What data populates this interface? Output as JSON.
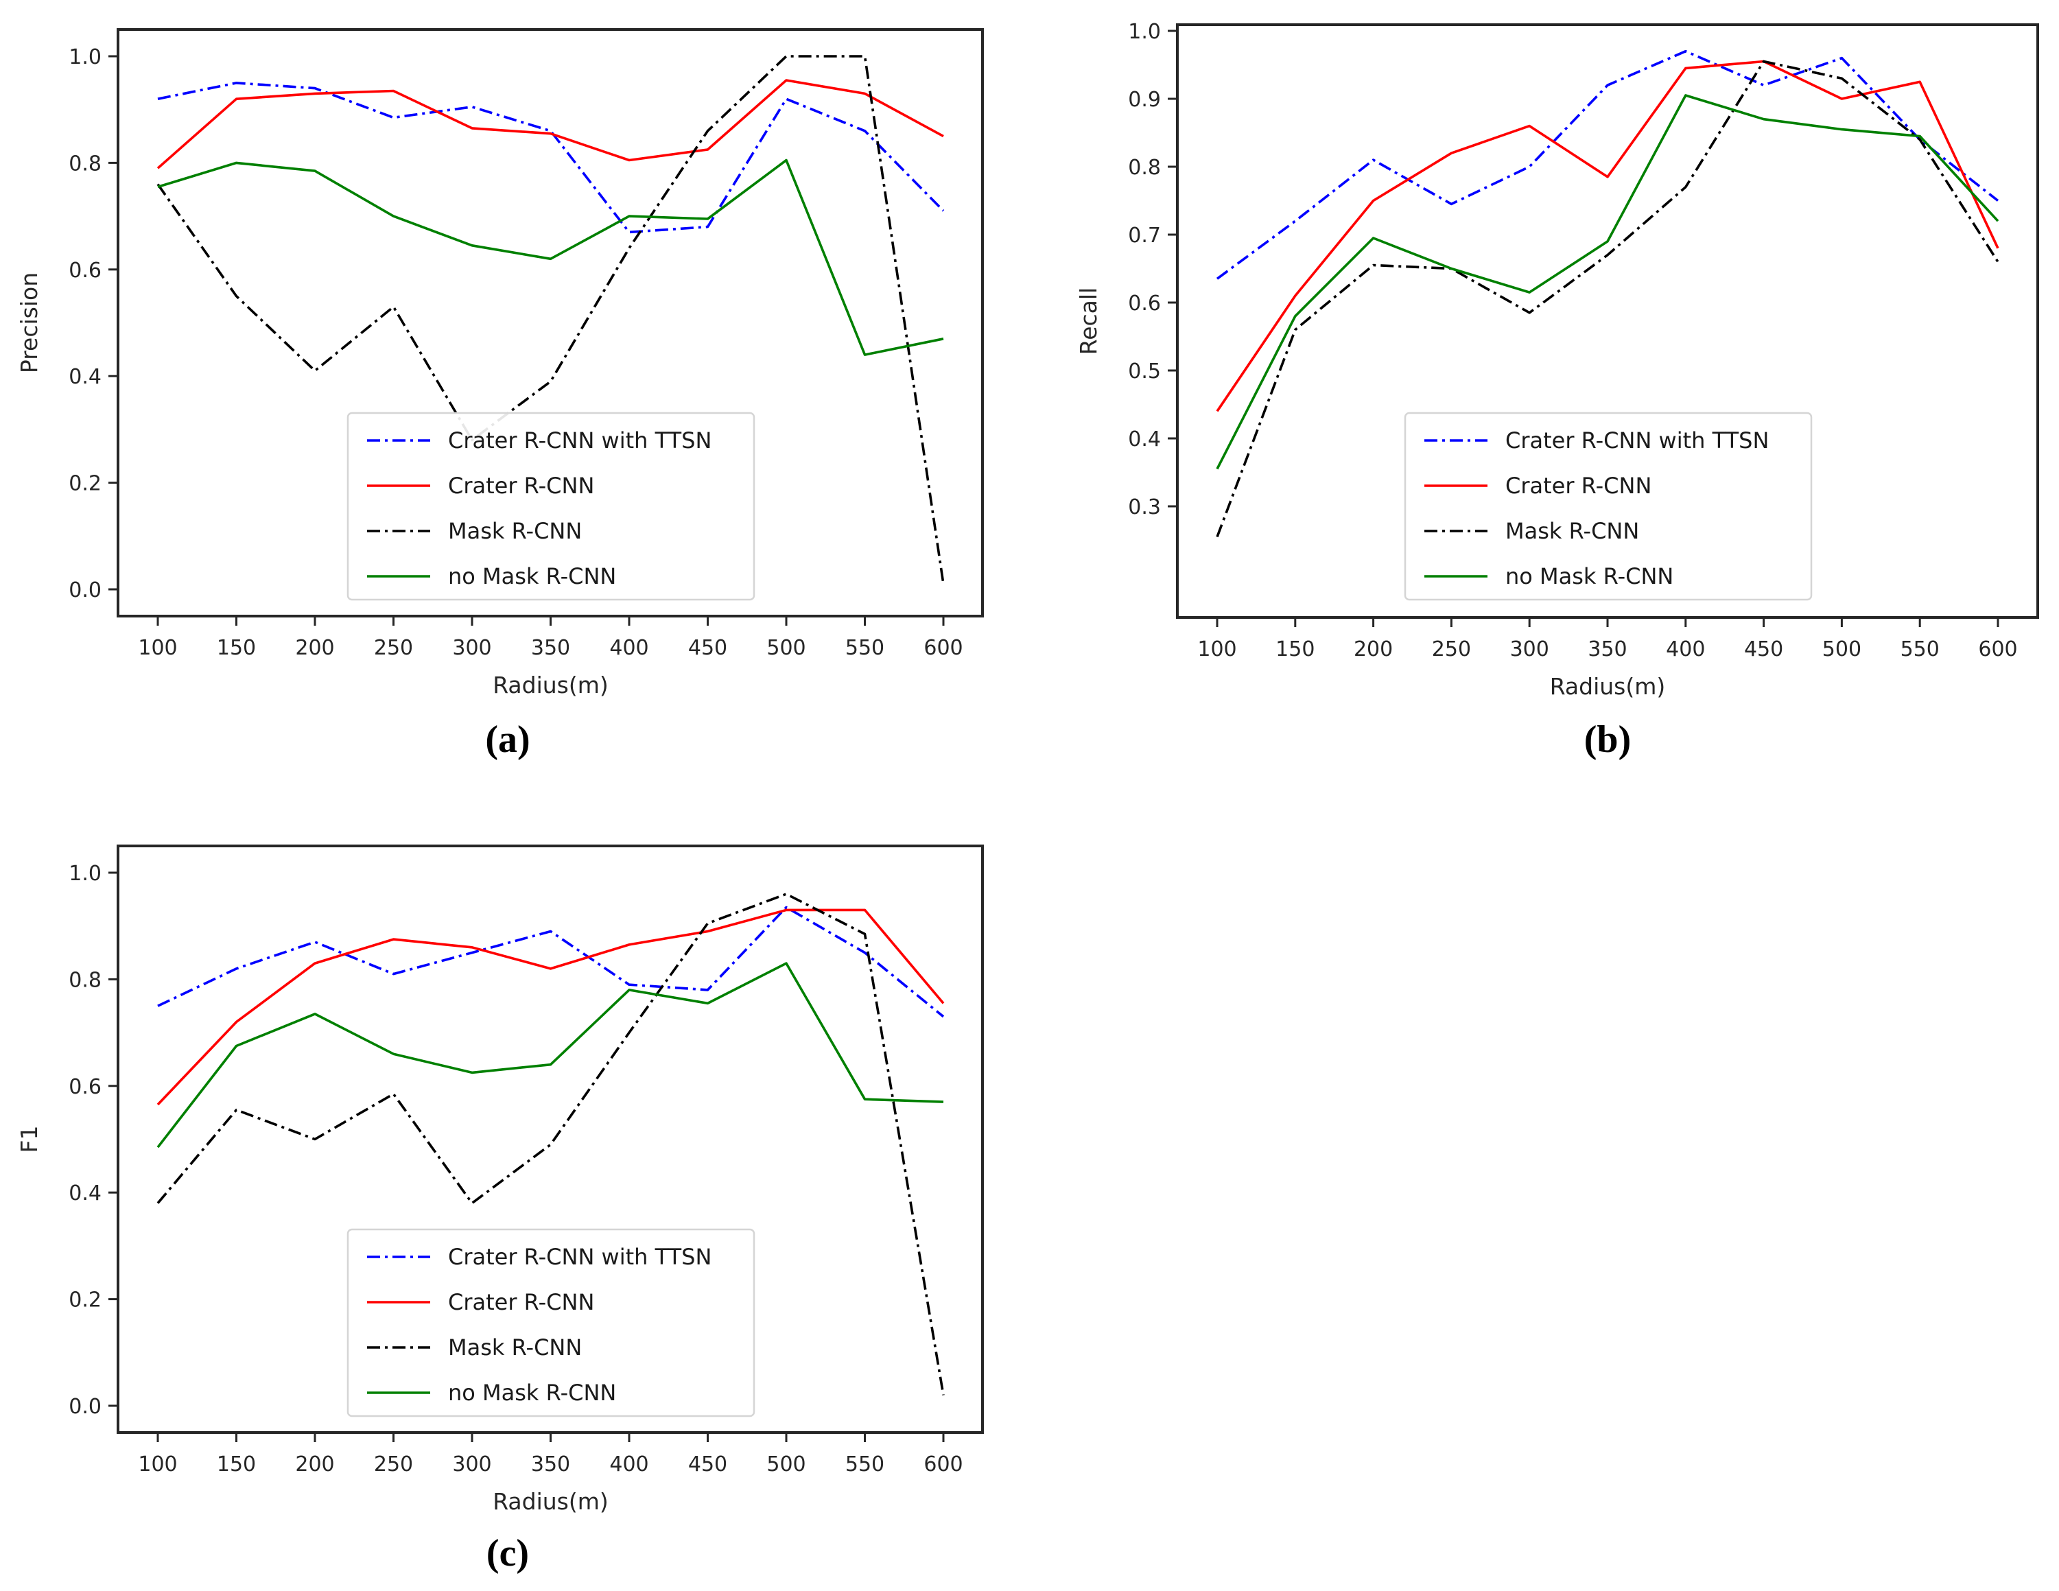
{
  "figure": {
    "background": "#ffffff",
    "spine_color": "#262626",
    "text_color": "#262626",
    "legend_border_color": "#d5d5d5",
    "legend_background": "#ffffff"
  },
  "legend": {
    "items": [
      {
        "label": "Crater R-CNN with TTSN",
        "color": "#0000ff",
        "line_style": "dashdot"
      },
      {
        "label": "Crater R-CNN",
        "color": "#ff0000",
        "line_style": "solid"
      },
      {
        "label": "Mask R-CNN",
        "color": "#000000",
        "line_style": "dashdot"
      },
      {
        "label": "no Mask R-CNN",
        "color": "#008000",
        "line_style": "solid"
      }
    ]
  },
  "chart_data": [
    {
      "id": "a",
      "type": "line",
      "caption": "(a)",
      "xlabel": "Radius(m)",
      "ylabel": "Precision",
      "x": [
        100,
        150,
        200,
        250,
        300,
        350,
        400,
        450,
        500,
        550,
        600
      ],
      "xtick_labels": [
        "100",
        "150",
        "200",
        "250",
        "300",
        "350",
        "400",
        "450",
        "500",
        "550",
        "600"
      ],
      "xlim": [
        75,
        625
      ],
      "yticks": [
        0.0,
        0.2,
        0.4,
        0.6,
        0.8,
        1.0
      ],
      "ytick_labels": [
        "0.0",
        "0.2",
        "0.4",
        "0.6",
        "0.8",
        "1.0"
      ],
      "ylim": [
        -0.05,
        1.05
      ],
      "grid": false,
      "legend_position": "lower center",
      "series": [
        {
          "name": "Crater R-CNN with TTSN",
          "color": "#0000ff",
          "line_style": "dashdot",
          "values": [
            0.92,
            0.95,
            0.94,
            0.885,
            0.905,
            0.86,
            0.67,
            0.68,
            0.92,
            0.86,
            0.71
          ]
        },
        {
          "name": "Crater R-CNN",
          "color": "#ff0000",
          "line_style": "solid",
          "values": [
            0.79,
            0.92,
            0.93,
            0.935,
            0.865,
            0.855,
            0.805,
            0.825,
            0.955,
            0.93,
            0.85
          ]
        },
        {
          "name": "Mask R-CNN",
          "color": "#000000",
          "line_style": "dashdot",
          "values": [
            0.76,
            0.55,
            0.41,
            0.53,
            0.28,
            0.39,
            0.64,
            0.86,
            1.0,
            1.0,
            0.01
          ]
        },
        {
          "name": "no Mask R-CNN",
          "color": "#008000",
          "line_style": "solid",
          "values": [
            0.755,
            0.8,
            0.785,
            0.7,
            0.645,
            0.62,
            0.7,
            0.695,
            0.805,
            0.44,
            0.47
          ]
        }
      ]
    },
    {
      "id": "b",
      "type": "line",
      "caption": "(b)",
      "xlabel": "Radius(m)",
      "ylabel": "Recall",
      "x": [
        100,
        150,
        200,
        250,
        300,
        350,
        400,
        450,
        500,
        550,
        600
      ],
      "xtick_labels": [
        "100",
        "150",
        "200",
        "250",
        "300",
        "350",
        "400",
        "450",
        "500",
        "550",
        "600"
      ],
      "xlim": [
        75,
        625
      ],
      "yticks": [
        0.3,
        0.4,
        0.5,
        0.6,
        0.7,
        0.8,
        0.9,
        1.0
      ],
      "ytick_labels": [
        "0.3",
        "0.4",
        "0.5",
        "0.6",
        "0.7",
        "0.8",
        "0.9",
        "1.0"
      ],
      "ylim": [
        0.135,
        1.01
      ],
      "grid": false,
      "legend_position": "lower center",
      "series": [
        {
          "name": "Crater R-CNN with TTSN",
          "color": "#0000ff",
          "line_style": "dashdot",
          "values": [
            0.635,
            0.72,
            0.81,
            0.745,
            0.8,
            0.92,
            0.97,
            0.92,
            0.96,
            0.84,
            0.75
          ]
        },
        {
          "name": "Crater R-CNN",
          "color": "#ff0000",
          "line_style": "solid",
          "values": [
            0.44,
            0.61,
            0.75,
            0.82,
            0.86,
            0.785,
            0.945,
            0.955,
            0.9,
            0.925,
            0.68
          ]
        },
        {
          "name": "Mask R-CNN",
          "color": "#000000",
          "line_style": "dashdot",
          "values": [
            0.255,
            0.56,
            0.655,
            0.65,
            0.585,
            0.67,
            0.77,
            0.955,
            0.93,
            0.84,
            0.66
          ]
        },
        {
          "name": "no Mask R-CNN",
          "color": "#008000",
          "line_style": "solid",
          "values": [
            0.355,
            0.58,
            0.695,
            0.65,
            0.615,
            0.69,
            0.905,
            0.87,
            0.855,
            0.845,
            0.72
          ]
        }
      ]
    },
    {
      "id": "c",
      "type": "line",
      "caption": "(c)",
      "xlabel": "Radius(m)",
      "ylabel": "F1",
      "x": [
        100,
        150,
        200,
        250,
        300,
        350,
        400,
        450,
        500,
        550,
        600
      ],
      "xtick_labels": [
        "100",
        "150",
        "200",
        "250",
        "300",
        "350",
        "400",
        "450",
        "500",
        "550",
        "600"
      ],
      "xlim": [
        75,
        625
      ],
      "yticks": [
        0.0,
        0.2,
        0.4,
        0.6,
        0.8,
        1.0
      ],
      "ytick_labels": [
        "0.0",
        "0.2",
        "0.4",
        "0.6",
        "0.8",
        "1.0"
      ],
      "ylim": [
        -0.05,
        1.05
      ],
      "grid": false,
      "legend_position": "lower center",
      "series": [
        {
          "name": "Crater R-CNN with TTSN",
          "color": "#0000ff",
          "line_style": "dashdot",
          "values": [
            0.75,
            0.82,
            0.87,
            0.81,
            0.85,
            0.89,
            0.79,
            0.78,
            0.935,
            0.85,
            0.73
          ]
        },
        {
          "name": "Crater R-CNN",
          "color": "#ff0000",
          "line_style": "solid",
          "values": [
            0.565,
            0.72,
            0.83,
            0.875,
            0.86,
            0.82,
            0.865,
            0.89,
            0.93,
            0.93,
            0.755
          ]
        },
        {
          "name": "Mask R-CNN",
          "color": "#000000",
          "line_style": "dashdot",
          "values": [
            0.38,
            0.555,
            0.5,
            0.585,
            0.38,
            0.49,
            0.7,
            0.905,
            0.96,
            0.885,
            0.02
          ]
        },
        {
          "name": "no Mask R-CNN",
          "color": "#008000",
          "line_style": "solid",
          "values": [
            0.485,
            0.675,
            0.735,
            0.66,
            0.625,
            0.64,
            0.78,
            0.755,
            0.83,
            0.575,
            0.57
          ]
        }
      ]
    }
  ]
}
